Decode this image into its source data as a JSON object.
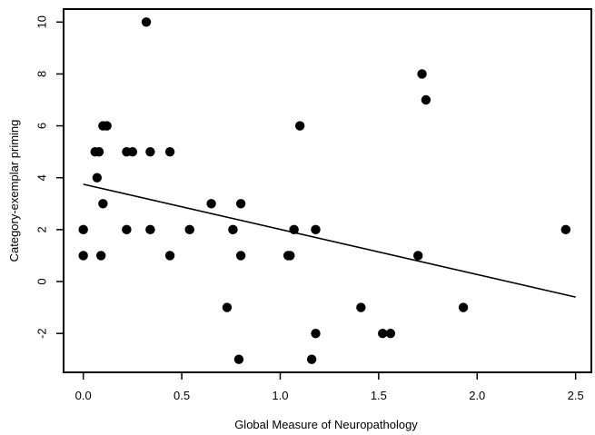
{
  "chart_data": {
    "type": "scatter",
    "title": "",
    "xlabel": "Global Measure of Neuropathology",
    "ylabel": "Category-exemplar priming",
    "xlim": [
      -0.1,
      2.58
    ],
    "ylim": [
      -3.5,
      10.5
    ],
    "xticks": [
      0.0,
      0.5,
      1.0,
      1.5,
      2.0,
      2.5
    ],
    "xtick_labels": [
      "0.0",
      "0.5",
      "1.0",
      "1.5",
      "2.0",
      "2.5"
    ],
    "yticks": [
      -2,
      0,
      2,
      4,
      6,
      8,
      10
    ],
    "ytick_labels": [
      "-2",
      "0",
      "2",
      "4",
      "6",
      "8",
      "10"
    ],
    "points": [
      {
        "x": 0.0,
        "y": 2
      },
      {
        "x": 0.0,
        "y": 1
      },
      {
        "x": 0.06,
        "y": 5
      },
      {
        "x": 0.07,
        "y": 4
      },
      {
        "x": 0.08,
        "y": 5
      },
      {
        "x": 0.09,
        "y": 1
      },
      {
        "x": 0.1,
        "y": 6
      },
      {
        "x": 0.1,
        "y": 3
      },
      {
        "x": 0.12,
        "y": 6
      },
      {
        "x": 0.22,
        "y": 5
      },
      {
        "x": 0.22,
        "y": 2
      },
      {
        "x": 0.25,
        "y": 5
      },
      {
        "x": 0.32,
        "y": 10
      },
      {
        "x": 0.34,
        "y": 5
      },
      {
        "x": 0.34,
        "y": 2
      },
      {
        "x": 0.44,
        "y": 5
      },
      {
        "x": 0.44,
        "y": 1
      },
      {
        "x": 0.54,
        "y": 2
      },
      {
        "x": 0.65,
        "y": 3
      },
      {
        "x": 0.73,
        "y": -1
      },
      {
        "x": 0.76,
        "y": 2
      },
      {
        "x": 0.79,
        "y": -3
      },
      {
        "x": 0.8,
        "y": 3
      },
      {
        "x": 0.8,
        "y": 1
      },
      {
        "x": 1.04,
        "y": 1
      },
      {
        "x": 1.05,
        "y": 1
      },
      {
        "x": 1.07,
        "y": 2
      },
      {
        "x": 1.1,
        "y": 6
      },
      {
        "x": 1.16,
        "y": -3
      },
      {
        "x": 1.18,
        "y": 2
      },
      {
        "x": 1.18,
        "y": -2
      },
      {
        "x": 1.41,
        "y": -1
      },
      {
        "x": 1.52,
        "y": -2
      },
      {
        "x": 1.56,
        "y": -2
      },
      {
        "x": 1.7,
        "y": 1
      },
      {
        "x": 1.72,
        "y": 8
      },
      {
        "x": 1.74,
        "y": 7
      },
      {
        "x": 1.93,
        "y": -1
      },
      {
        "x": 2.45,
        "y": 2
      }
    ],
    "regression_line": {
      "x": [
        0.0,
        2.5
      ],
      "y": [
        3.75,
        -0.6
      ]
    },
    "grid": false,
    "legend": "none",
    "colors": {
      "point": "#000000",
      "line": "#000000",
      "axis": "#000000"
    }
  }
}
